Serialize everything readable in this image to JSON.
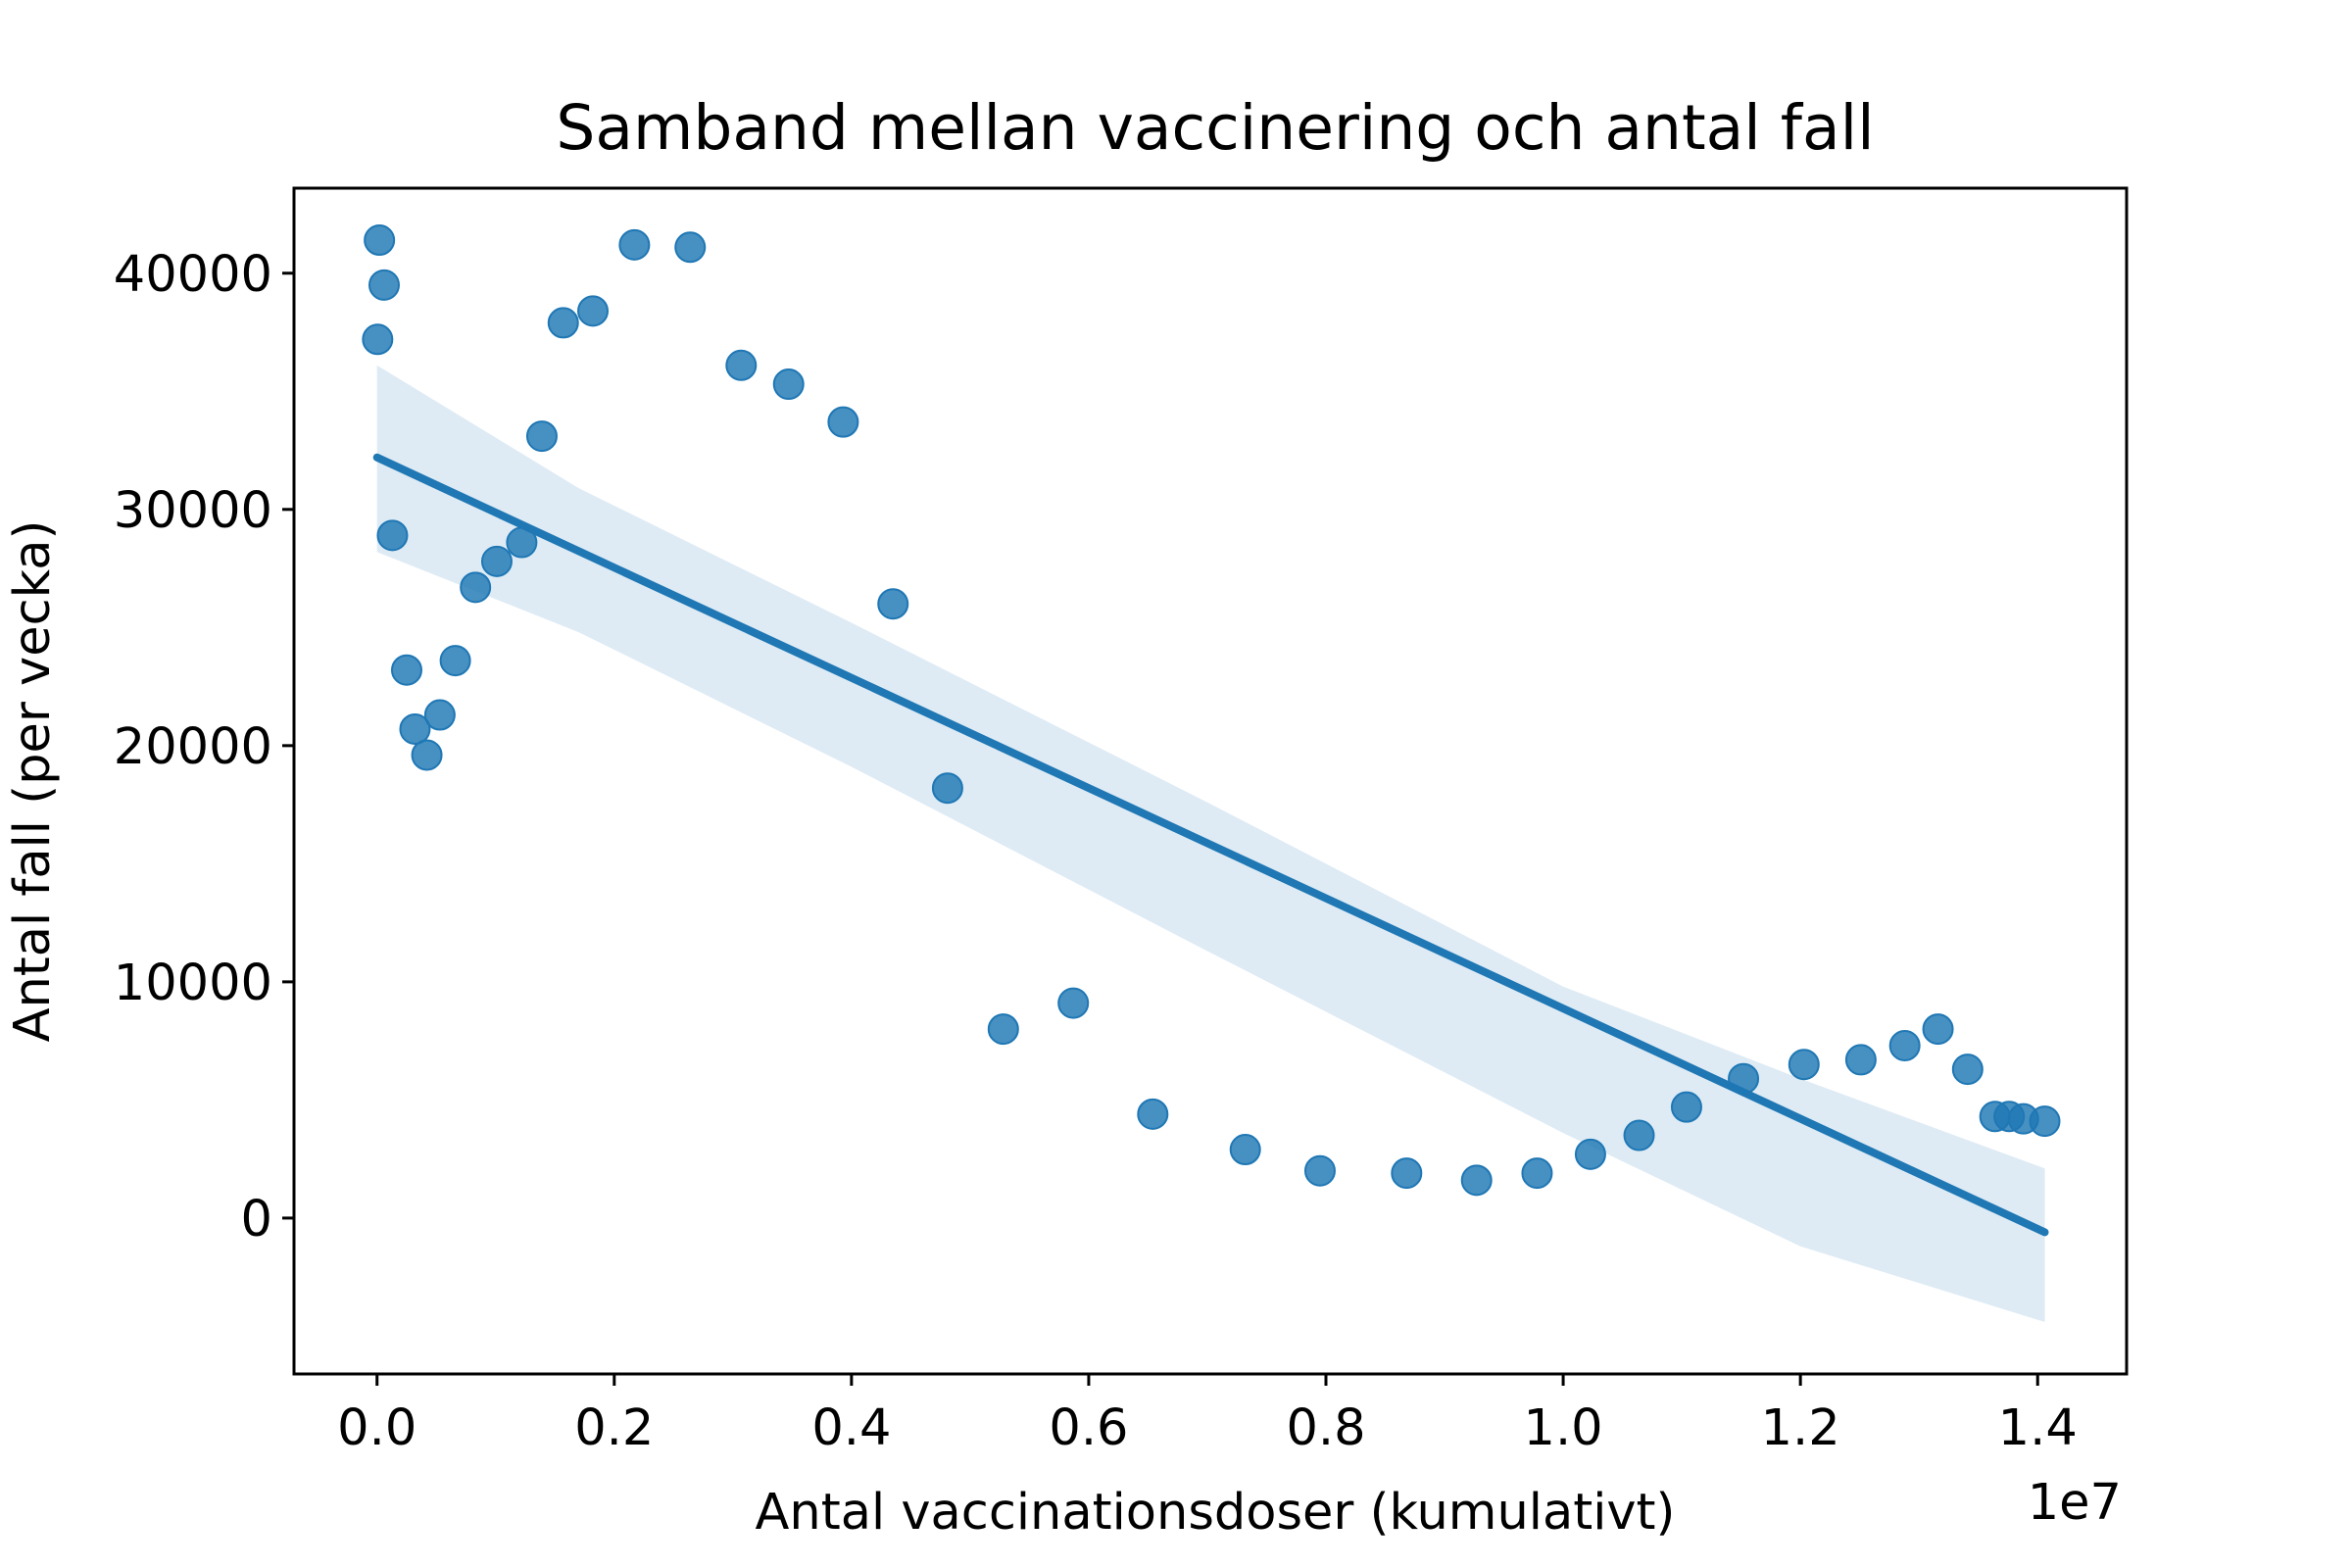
{
  "chart_data": {
    "type": "scatter",
    "title": "Samband mellan vaccinering och antal fall",
    "xlabel": "Antal vaccinationsdoser (kumulativt)",
    "ylabel": "Antal fall (per vecka)",
    "x_offset_label": "1e7",
    "xlim": [
      -700000,
      14750000
    ],
    "ylim": [
      -6600,
      43600
    ],
    "x_ticks": [
      0,
      2000000,
      4000000,
      6000000,
      8000000,
      10000000,
      12000000,
      14000000
    ],
    "x_tick_labels": [
      "0.0",
      "0.2",
      "0.4",
      "0.6",
      "0.8",
      "1.0",
      "1.2",
      "1.4"
    ],
    "y_ticks": [
      0,
      10000,
      20000,
      30000,
      40000
    ],
    "y_tick_labels": [
      "0",
      "10000",
      "20000",
      "30000",
      "40000"
    ],
    "grid": false,
    "colors": {
      "points": "#1f77b4",
      "line": "#1f77b4",
      "band": "#1f77b4"
    },
    "points": [
      {
        "x": 5000,
        "y": 37200
      },
      {
        "x": 20000,
        "y": 41400
      },
      {
        "x": 60000,
        "y": 39500
      },
      {
        "x": 130000,
        "y": 28900
      },
      {
        "x": 250000,
        "y": 23200
      },
      {
        "x": 320000,
        "y": 20700
      },
      {
        "x": 420000,
        "y": 19600
      },
      {
        "x": 530000,
        "y": 21300
      },
      {
        "x": 660000,
        "y": 23600
      },
      {
        "x": 830000,
        "y": 26700
      },
      {
        "x": 1010000,
        "y": 27800
      },
      {
        "x": 1220000,
        "y": 28600
      },
      {
        "x": 1390000,
        "y": 33100
      },
      {
        "x": 1570000,
        "y": 37900
      },
      {
        "x": 1820000,
        "y": 38400
      },
      {
        "x": 2170000,
        "y": 41200
      },
      {
        "x": 2640000,
        "y": 41100
      },
      {
        "x": 3070000,
        "y": 36100
      },
      {
        "x": 3470000,
        "y": 35300
      },
      {
        "x": 3930000,
        "y": 33700
      },
      {
        "x": 4350000,
        "y": 26000
      },
      {
        "x": 4810000,
        "y": 18200
      },
      {
        "x": 5280000,
        "y": 8000
      },
      {
        "x": 5870000,
        "y": 9100
      },
      {
        "x": 6540000,
        "y": 4400
      },
      {
        "x": 7320000,
        "y": 2900
      },
      {
        "x": 7950000,
        "y": 2000
      },
      {
        "x": 8680000,
        "y": 1900
      },
      {
        "x": 9270000,
        "y": 1600
      },
      {
        "x": 9780000,
        "y": 1900
      },
      {
        "x": 10230000,
        "y": 2700
      },
      {
        "x": 10640000,
        "y": 3500
      },
      {
        "x": 11040000,
        "y": 4700
      },
      {
        "x": 11520000,
        "y": 5900
      },
      {
        "x": 12030000,
        "y": 6500
      },
      {
        "x": 12510000,
        "y": 6700
      },
      {
        "x": 12880000,
        "y": 7300
      },
      {
        "x": 13160000,
        "y": 8000
      },
      {
        "x": 13410000,
        "y": 6300
      },
      {
        "x": 13640000,
        "y": 4300
      },
      {
        "x": 13760000,
        "y": 4300
      },
      {
        "x": 13880000,
        "y": 4200
      },
      {
        "x": 14060000,
        "y": 4100
      }
    ],
    "regression_line": {
      "x": [
        0,
        14060000
      ],
      "y": [
        32200,
        -600
      ]
    },
    "confidence_band": {
      "x": [
        0,
        1700000,
        4000000,
        7000000,
        10000000,
        12000000,
        14060000
      ],
      "upper": [
        36100,
        30900,
        25200,
        17600,
        9800,
        5900,
        2100
      ],
      "lower": [
        28200,
        24800,
        19100,
        11300,
        3600,
        -1200,
        -4400
      ]
    }
  }
}
